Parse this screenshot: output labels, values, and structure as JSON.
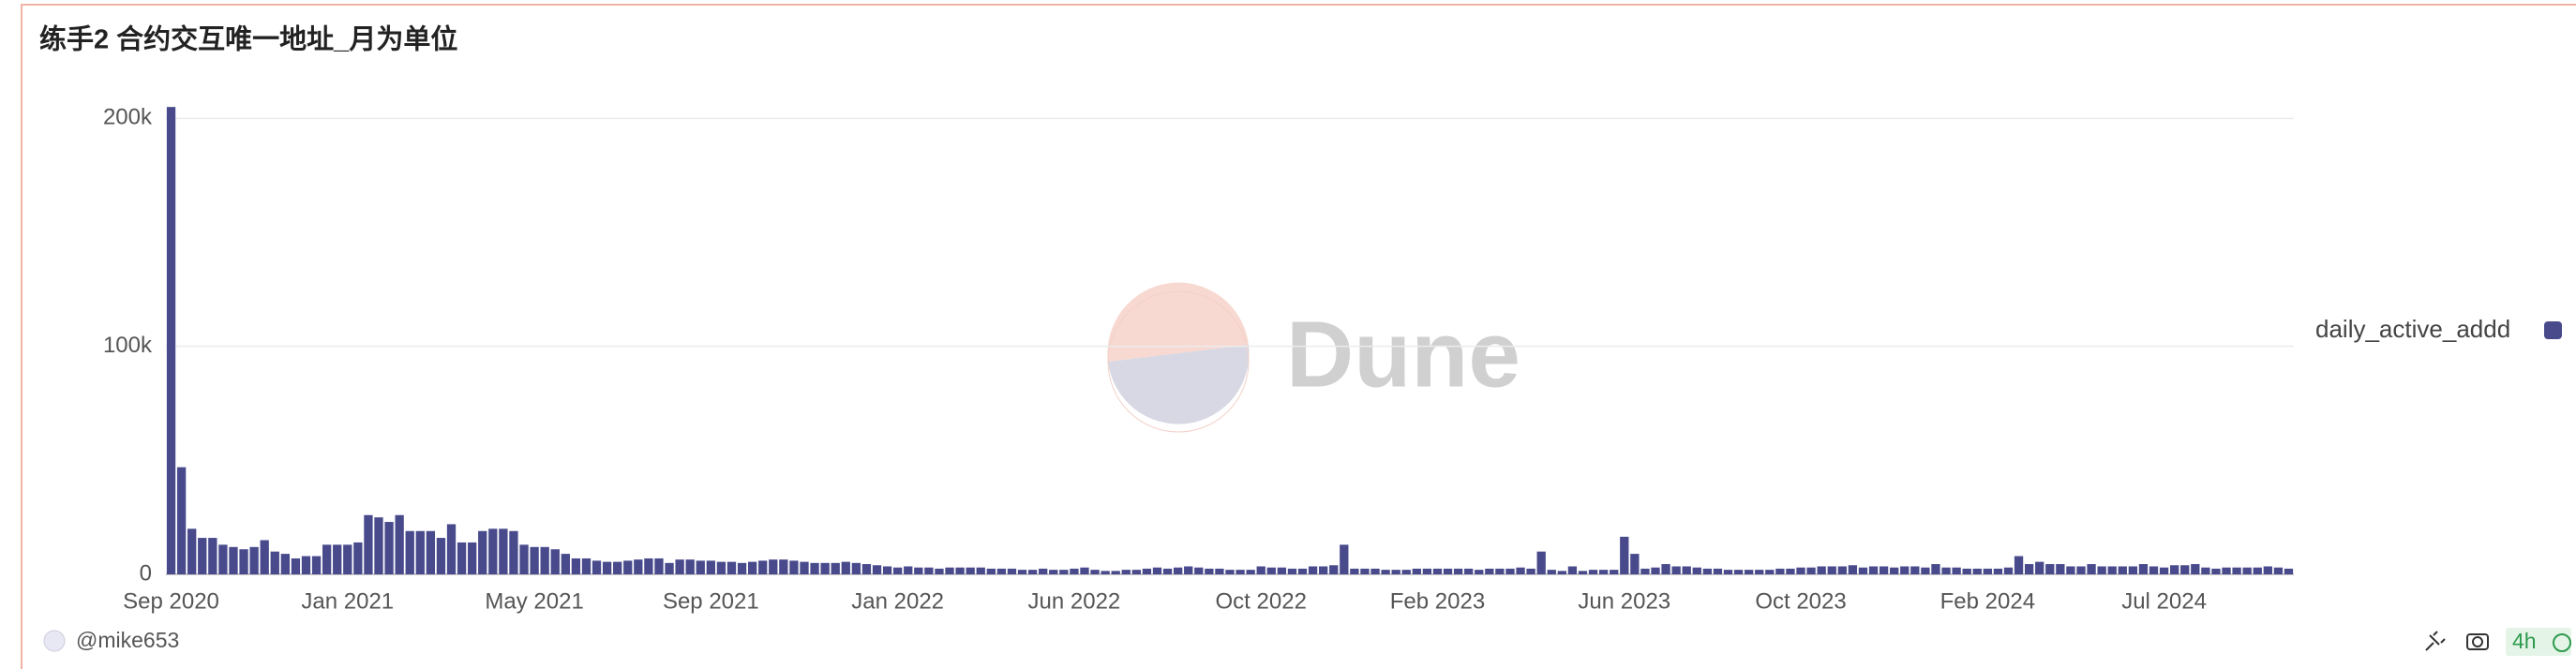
{
  "chart_data": {
    "type": "bar",
    "title": "练手2 合约交互唯一地址_月为单位",
    "categories": [
      "Sep 2020",
      null,
      null,
      null,
      null,
      null,
      null,
      null,
      null,
      null,
      null,
      null,
      null,
      null,
      null,
      null,
      null,
      "Jan 2021",
      null,
      null,
      null,
      null,
      null,
      null,
      null,
      null,
      null,
      null,
      null,
      null,
      null,
      null,
      null,
      null,
      null,
      "May 2021",
      null,
      null,
      null,
      null,
      null,
      null,
      null,
      null,
      null,
      null,
      null,
      null,
      null,
      null,
      null,
      null,
      "Sep 2021",
      null,
      null,
      null,
      null,
      null,
      null,
      null,
      null,
      null,
      null,
      null,
      null,
      null,
      null,
      null,
      null,
      null,
      "Jan 2022",
      null,
      null,
      null,
      null,
      null,
      null,
      null,
      null,
      null,
      null,
      null,
      null,
      null,
      null,
      null,
      null,
      "Jun 2022",
      null,
      null,
      null,
      null,
      null,
      null,
      null,
      null,
      null,
      null,
      null,
      null,
      null,
      null,
      null,
      null,
      null,
      "Oct 2022",
      null,
      null,
      null,
      null,
      null,
      null,
      null,
      null,
      null,
      null,
      null,
      null,
      null,
      null,
      null,
      null,
      "Feb 2023",
      null,
      null,
      null,
      null,
      null,
      null,
      null,
      null,
      null,
      null,
      null,
      null,
      null,
      null,
      null,
      null,
      null,
      "Jun 2023",
      null,
      null,
      null,
      null,
      null,
      null,
      null,
      null,
      null,
      null,
      null,
      null,
      null,
      null,
      null,
      null,
      "Oct 2023",
      null,
      null,
      null,
      null,
      null,
      null,
      null,
      null,
      null,
      null,
      null,
      null,
      null,
      null,
      null,
      null,
      null,
      "Feb 2024",
      null,
      null,
      null,
      null,
      null,
      null,
      null,
      null,
      null,
      null,
      null,
      null,
      null,
      null,
      null,
      null,
      "Jul 2024",
      null,
      null,
      null,
      null,
      null,
      null,
      null,
      null,
      null,
      null,
      null,
      null
    ],
    "series": [
      {
        "name": "daily_active_addd",
        "color": "#484a8c",
        "values": [
          205000,
          47000,
          20000,
          16000,
          16000,
          13000,
          12000,
          11000,
          12000,
          15000,
          10000,
          9000,
          7000,
          8000,
          8000,
          13000,
          13000,
          13000,
          14000,
          26000,
          25000,
          23000,
          26000,
          19000,
          19000,
          19000,
          16000,
          22000,
          14000,
          14000,
          19000,
          20000,
          20000,
          19000,
          13000,
          12000,
          12000,
          11000,
          9000,
          7000,
          7000,
          6000,
          5500,
          5500,
          6000,
          6500,
          7000,
          7000,
          5000,
          6500,
          6500,
          6000,
          6000,
          5500,
          5500,
          5000,
          5500,
          6000,
          6500,
          6500,
          6000,
          5500,
          5000,
          5000,
          5000,
          5500,
          5000,
          4500,
          4000,
          3500,
          3000,
          3500,
          3000,
          3000,
          2500,
          3000,
          3000,
          3000,
          3000,
          2500,
          2500,
          2500,
          2000,
          2000,
          2500,
          2000,
          2000,
          2500,
          3000,
          2000,
          1500,
          1500,
          2000,
          2000,
          2500,
          3000,
          2500,
          3000,
          3500,
          3000,
          2500,
          2500,
          2000,
          2000,
          2000,
          3500,
          3000,
          3000,
          2500,
          2500,
          3500,
          3500,
          4000,
          13000,
          2500,
          2500,
          2500,
          2000,
          2000,
          2000,
          2500,
          2500,
          2500,
          2500,
          2500,
          2500,
          2000,
          2500,
          2500,
          2500,
          3000,
          2500,
          10000,
          2000,
          1500,
          3500,
          1500,
          2000,
          2000,
          2000,
          16500,
          9000,
          2500,
          3000,
          4500,
          3500,
          3500,
          3000,
          2500,
          2500,
          2000,
          2000,
          2000,
          2000,
          2000,
          2500,
          2500,
          3000,
          3000,
          3500,
          3500,
          3500,
          4000,
          3000,
          3500,
          3500,
          3000,
          3500,
          3500,
          3000,
          4500,
          3000,
          3000,
          2500,
          2500,
          2500,
          2500,
          3000,
          8000,
          4500,
          5500,
          4500,
          4500,
          3500,
          3500,
          4500,
          3500,
          3500,
          3500,
          3500,
          4500,
          3500,
          3000,
          4000,
          4000,
          4500,
          3000,
          2500,
          3000,
          3000,
          3000,
          3000,
          3500,
          3000,
          2500
        ]
      }
    ],
    "ylim": [
      0,
      210000
    ],
    "yticks": [
      0,
      {
        "value": 100000,
        "label": "100k"
      },
      {
        "value": 200000,
        "label": "200k"
      }
    ],
    "grid": true,
    "legend": "right"
  },
  "watermark": "Dune",
  "footer": {
    "user": "@mike653",
    "age": "4h"
  }
}
